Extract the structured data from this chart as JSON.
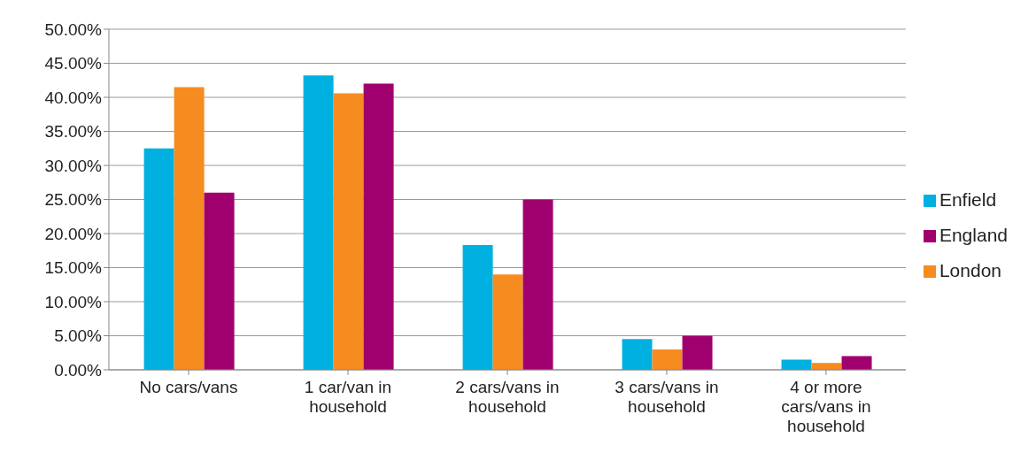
{
  "chart_data": {
    "type": "bar",
    "categories": [
      "No cars/vans",
      "1 car/van in household",
      "2 cars/vans in household",
      "3 cars/vans in household",
      "4 or more cars/vans in household"
    ],
    "series": [
      {
        "name": "Enfield",
        "color": "#00b0e0",
        "values": [
          32.5,
          43.2,
          18.3,
          4.5,
          1.5
        ]
      },
      {
        "name": "London",
        "color": "#f68b1f",
        "values": [
          41.5,
          40.6,
          14.0,
          3.0,
          1.0
        ]
      },
      {
        "name": "England",
        "color": "#a0006e",
        "values": [
          26.0,
          42.0,
          25.0,
          5.0,
          2.0
        ]
      }
    ],
    "ylim": [
      0,
      50
    ],
    "yticks": [
      {
        "value": 0,
        "label": "0.00%"
      },
      {
        "value": 5,
        "label": "5.00%"
      },
      {
        "value": 10,
        "label": "10.00%"
      },
      {
        "value": 15,
        "label": "15.00%"
      },
      {
        "value": 20,
        "label": "20.00%"
      },
      {
        "value": 25,
        "label": "25.00%"
      },
      {
        "value": 30,
        "label": "30.00%"
      },
      {
        "value": 35,
        "label": "35.00%"
      },
      {
        "value": 40,
        "label": "40.00%"
      },
      {
        "value": 45,
        "label": "45.00%"
      },
      {
        "value": 50,
        "label": "50.00%"
      }
    ],
    "grid": "y",
    "legend": "right"
  }
}
